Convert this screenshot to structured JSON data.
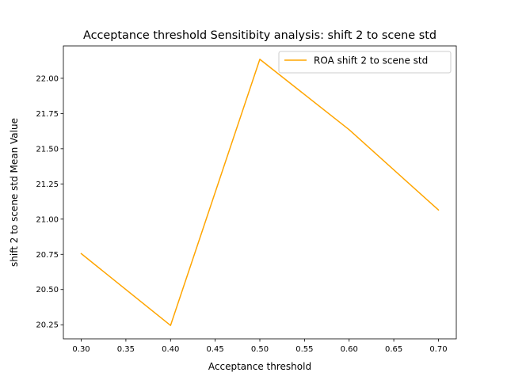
{
  "chart_data": {
    "type": "line",
    "title": "Acceptance threshold Sensitibity analysis: shift 2 to scene std",
    "xlabel": "Acceptance threshold",
    "ylabel": "shift 2 to scene std Mean Value",
    "x": [
      0.3,
      0.4,
      0.5,
      0.6,
      0.7
    ],
    "series": [
      {
        "name": "ROA shift 2 to scene std",
        "color": "#ffa500",
        "values": [
          20.755,
          20.245,
          22.135,
          21.635,
          21.065
        ]
      }
    ],
    "xticks": [
      0.3,
      0.35,
      0.4,
      0.45,
      0.5,
      0.55,
      0.6,
      0.65,
      0.7
    ],
    "xtick_labels": [
      "0.30",
      "0.35",
      "0.40",
      "0.45",
      "0.50",
      "0.55",
      "0.60",
      "0.65",
      "0.70"
    ],
    "yticks": [
      20.25,
      20.5,
      20.75,
      21.0,
      21.25,
      21.5,
      21.75,
      22.0
    ],
    "ytick_labels": [
      "20.25",
      "20.50",
      "20.75",
      "21.00",
      "21.25",
      "21.50",
      "21.75",
      "22.00"
    ],
    "xlim": [
      0.28,
      0.72
    ],
    "ylim": [
      20.15,
      22.23
    ],
    "grid": false,
    "legend_position": "upper right"
  }
}
